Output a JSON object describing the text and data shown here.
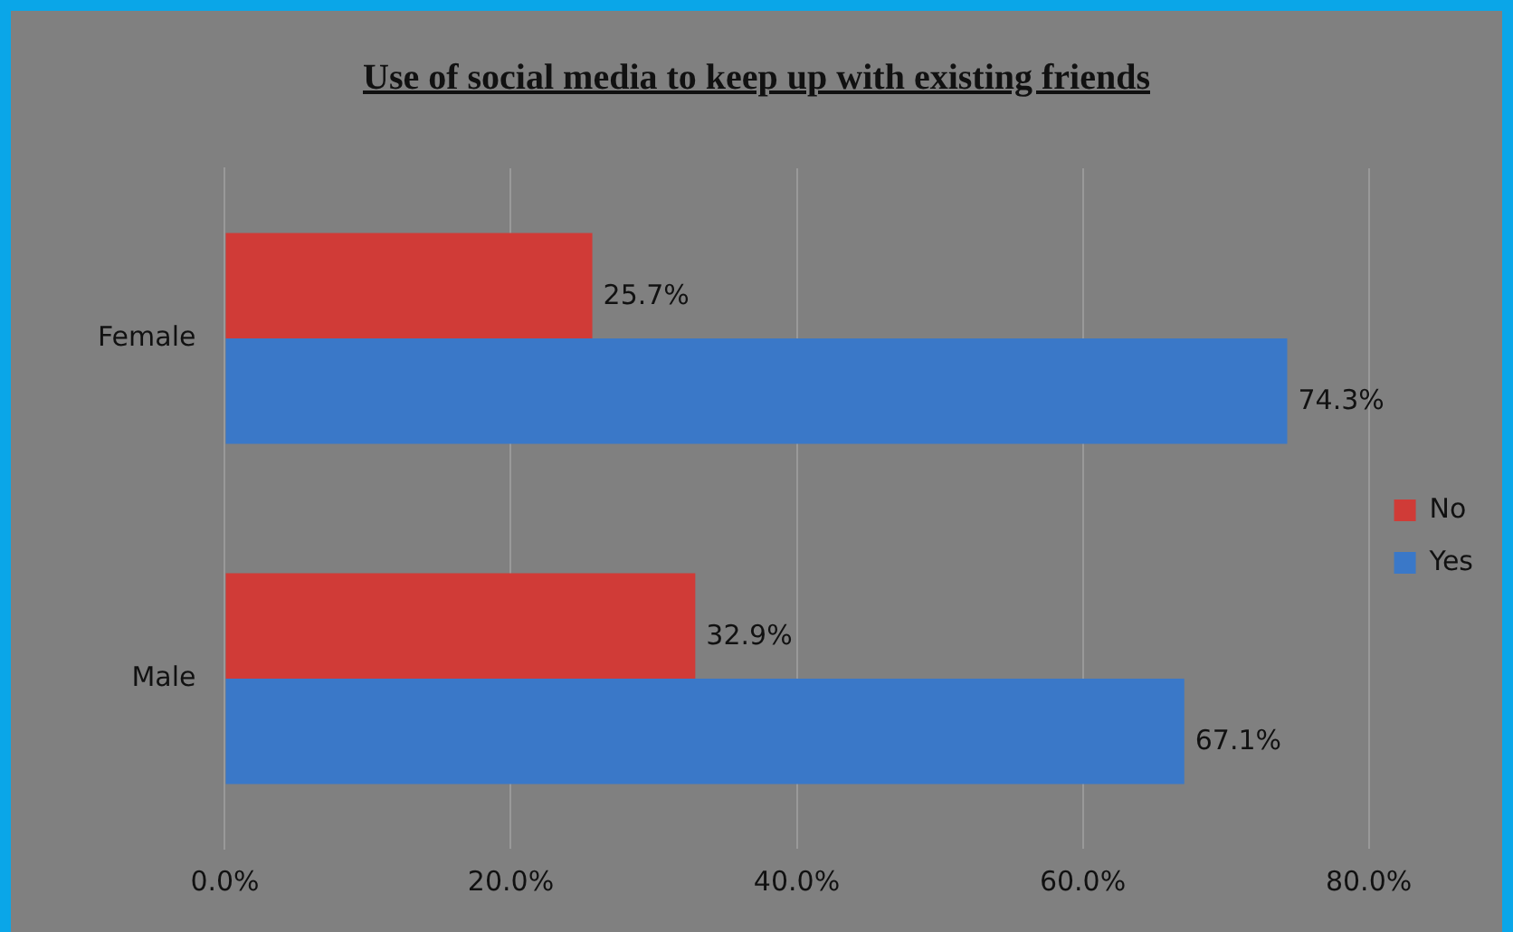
{
  "chart_data": {
    "type": "bar",
    "orientation": "horizontal",
    "title": "Use of social media  to  keep up with  existing friends",
    "categories": [
      "Female",
      "Male"
    ],
    "series": [
      {
        "name": "No",
        "color": "#d03b37",
        "values": [
          25.7,
          32.9
        ],
        "value_labels": [
          "25.7%",
          "32.9%"
        ]
      },
      {
        "name": "Yes",
        "color": "#3a78c8",
        "values": [
          74.3,
          67.1
        ],
        "value_labels": [
          "74.3%",
          "67.1%"
        ]
      }
    ],
    "xlim": [
      0,
      80
    ],
    "xticks": [
      {
        "value": 0,
        "label": "0.0%"
      },
      {
        "value": 20,
        "label": "20.0%"
      },
      {
        "value": 40,
        "label": "40.0%"
      },
      {
        "value": 60,
        "label": "60.0%"
      },
      {
        "value": 80,
        "label": "80.0%"
      }
    ],
    "grid": "x",
    "legend": "right"
  }
}
